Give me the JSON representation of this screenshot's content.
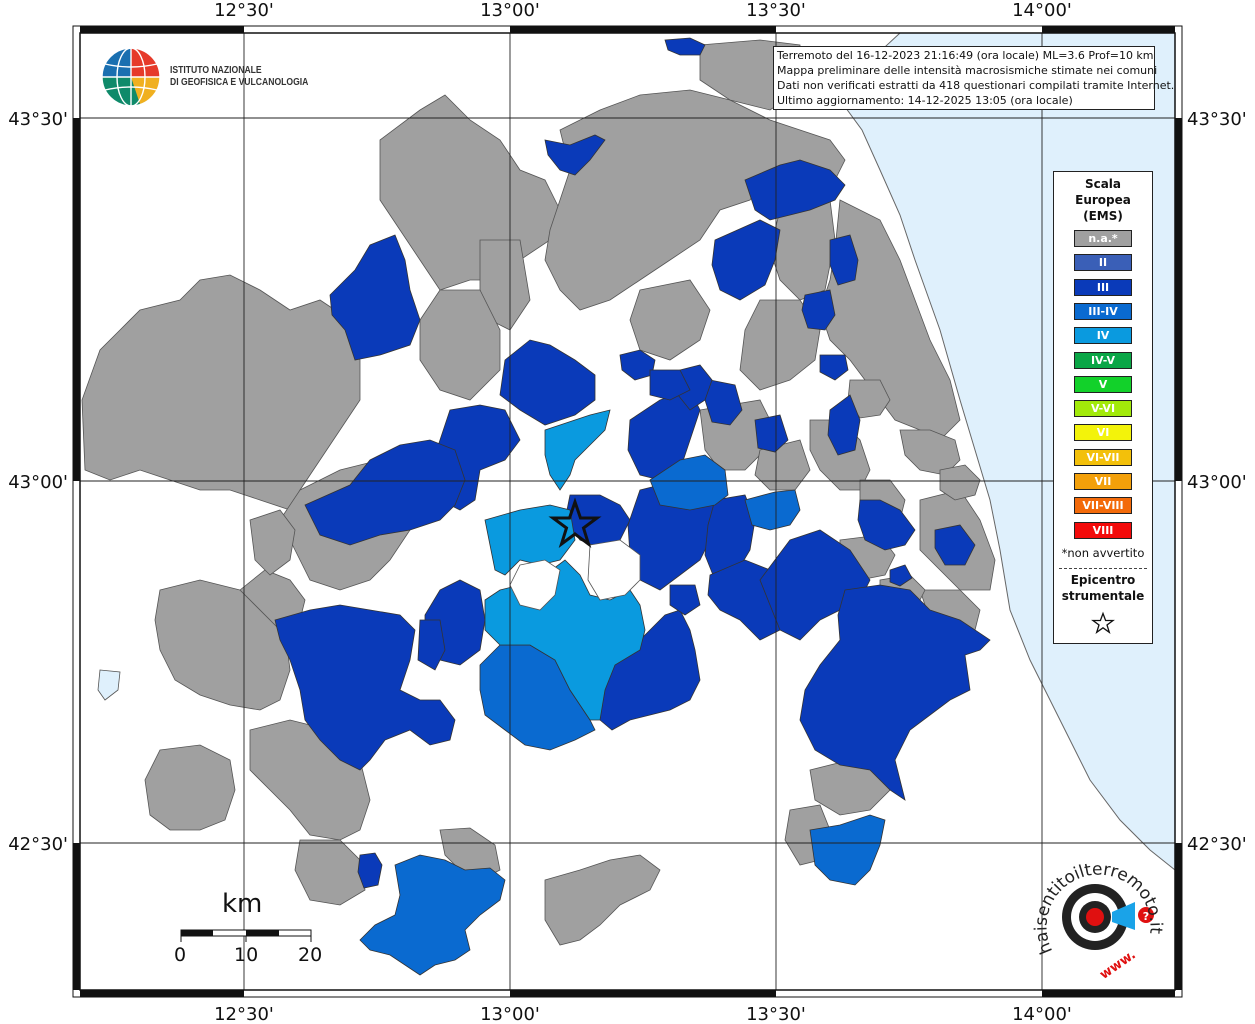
{
  "map": {
    "lon_ticks": [
      "12°30'",
      "13°00'",
      "13°30'",
      "14°00'"
    ],
    "lat_ticks": [
      "43°30'",
      "43°00'",
      "42°30'"
    ]
  },
  "logo": {
    "line1": "ISTITUTO NAZIONALE",
    "line2": "DI GEOFISICA E VULCANOLOGIA"
  },
  "info": {
    "line1": "Terremoto del 16-12-2023 21:16:49 (ora locale) ML=3.6 Prof=10 km",
    "line2": "Mappa preliminare delle intensità macrosismiche stimate nei comuni",
    "line3": "Dati non verificati estratti da 418 questionari compilati tramite Internet.",
    "line4": "Ultimo aggiornamento: 14-12-2025 13:05 (ora locale)"
  },
  "legend": {
    "title1": "Scala",
    "title2": "Europea",
    "title3": "(EMS)",
    "items": [
      {
        "label": "n.a.*",
        "color": "#a0a0a0"
      },
      {
        "label": "II",
        "color": "#3a5fb7"
      },
      {
        "label": "III",
        "color": "#0a3ab9"
      },
      {
        "label": "III-IV",
        "color": "#0a6ad0"
      },
      {
        "label": "IV",
        "color": "#0a9adf"
      },
      {
        "label": "IV-V",
        "color": "#0aa646"
      },
      {
        "label": "V",
        "color": "#12d12a"
      },
      {
        "label": "V-VI",
        "color": "#a2ea0a"
      },
      {
        "label": "VI",
        "color": "#f3f30a"
      },
      {
        "label": "VI-VII",
        "color": "#f3c00a"
      },
      {
        "label": "VII",
        "color": "#f3a00a"
      },
      {
        "label": "VII-VIII",
        "color": "#f36a0a"
      },
      {
        "label": "VIII",
        "color": "#f30a0a"
      }
    ],
    "note": "*non avvertito",
    "epi1": "Epicentro",
    "epi2": "strumentale"
  },
  "scale": {
    "title": "km",
    "labels": [
      "0",
      "10",
      "20"
    ]
  },
  "brand": {
    "text": "haisentitoilterremoto.it",
    "url": "www."
  },
  "colors": {
    "sea": "#dff0fc",
    "na": "#a0a0a0",
    "ii": "#3a5fb7",
    "iii": "#0a3ab9",
    "iii_iv": "#0a6ad0",
    "iv": "#0a9adf"
  }
}
